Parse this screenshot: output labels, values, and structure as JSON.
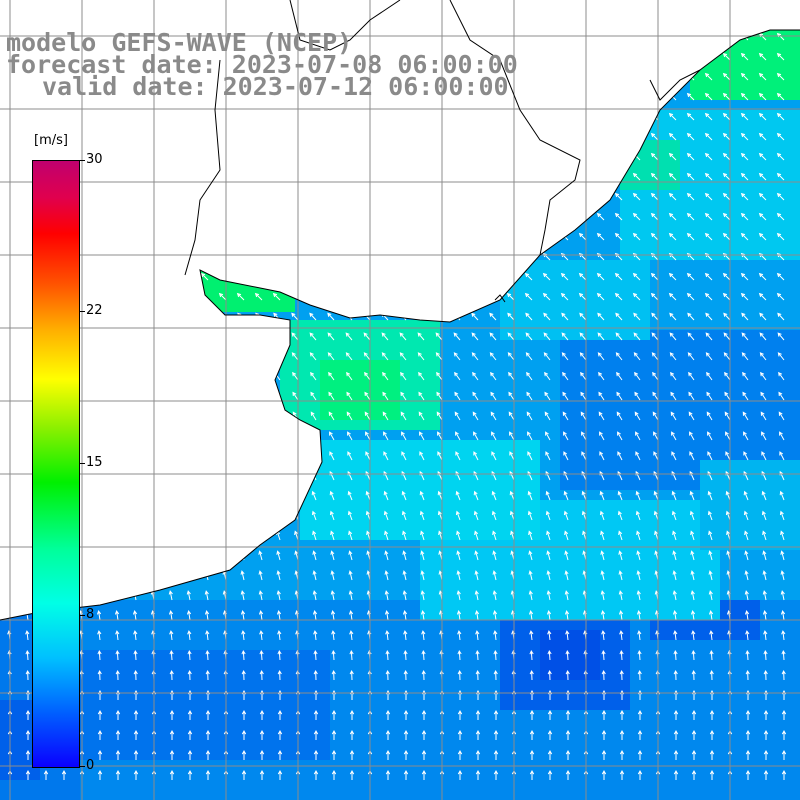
{
  "header": {
    "line1": "modelo GEFS-WAVE (NCEP)",
    "line2": "forecast date: 2023-07-08 06:00:00",
    "line3": "valid date: 2023-07-12 06:00:00"
  },
  "colorbar": {
    "unit": "[m/s]",
    "ticks": [
      "30",
      "22",
      "15",
      "8",
      "0"
    ],
    "colors": [
      "#0a00ff",
      "#00c0ff",
      "#00ffe6",
      "#00f000",
      "#ffff00",
      "#ff0000",
      "#c0006e"
    ]
  },
  "map_colors": {
    "land": "#ffffff",
    "coastline": "#000000",
    "grid": "#8c8c8c",
    "arrow": "#ffffff"
  }
}
